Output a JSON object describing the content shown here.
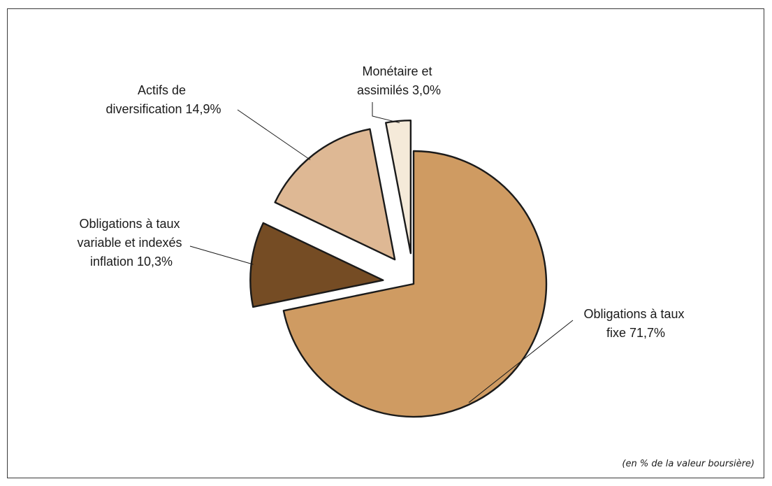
{
  "chart_data": {
    "type": "pie",
    "slices": [
      {
        "category": "Obligations à taux fixe",
        "value": 71.7,
        "label_lines": [
          "Obligations à taux",
          "fixe 71,7%"
        ],
        "color": "#CF9B62",
        "exploded": false
      },
      {
        "category": "Obligations à taux variable et indexés inflation",
        "value": 10.3,
        "label_lines": [
          "Obligations à taux",
          "variable et indexés",
          "inflation  10,3%"
        ],
        "color": "#754C24",
        "exploded": true
      },
      {
        "category": "Actifs de diversification",
        "value": 14.9,
        "label_lines": [
          "Actifs de",
          "diversification 14,9%"
        ],
        "color": "#DEB894",
        "exploded": true
      },
      {
        "category": "Monétaire et assimilés",
        "value": 3.0,
        "label_lines": [
          "Monétaire et",
          "assimilés 3,0%"
        ],
        "color": "#F5EAD9",
        "exploded": true
      }
    ],
    "note": "(en % de la valeur boursière)"
  }
}
